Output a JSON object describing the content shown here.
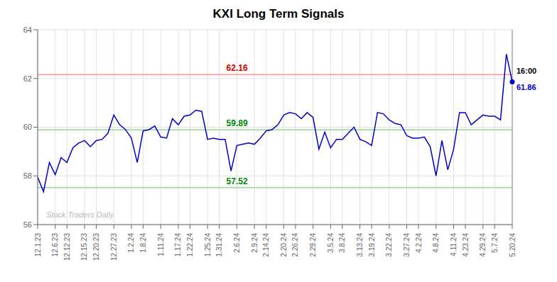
{
  "chart_data": {
    "type": "line",
    "title": "KXI Long Term Signals",
    "categories": [
      "12.1.23",
      null,
      null,
      "12.6.23",
      null,
      "12.12.23",
      null,
      null,
      "12.15.23",
      null,
      "12.20.23",
      null,
      null,
      "12.27.23",
      null,
      null,
      "1.2.24",
      null,
      "1.8.24",
      null,
      null,
      "1.11.24",
      null,
      null,
      "1.17.24",
      null,
      "1.22.24",
      null,
      null,
      "1.25.24",
      null,
      "1.31.24",
      null,
      null,
      "2.6.24",
      null,
      null,
      "2.9.24",
      null,
      "2.14.24",
      null,
      null,
      "2.20.24",
      null,
      "2.26.24",
      null,
      null,
      "2.29.24",
      null,
      null,
      "3.5.24",
      null,
      "3.8.24",
      null,
      null,
      "3.13.24",
      null,
      "3.19.24",
      null,
      null,
      "3.22.24",
      null,
      null,
      "3.27.24",
      null,
      "4.2.24",
      null,
      null,
      "4.8.24",
      null,
      null,
      "4.11.24",
      null,
      "4.23.24",
      null,
      null,
      "4.29.24",
      null,
      "5.7.24",
      null,
      null,
      "5.20.24"
    ],
    "values": [
      57.95,
      57.35,
      58.55,
      58.05,
      58.75,
      58.55,
      59.15,
      59.35,
      59.45,
      59.2,
      59.45,
      59.5,
      59.75,
      60.5,
      60.1,
      59.9,
      59.55,
      58.55,
      59.85,
      59.9,
      60.05,
      59.6,
      59.55,
      60.35,
      60.1,
      60.45,
      60.5,
      60.7,
      60.65,
      59.5,
      59.55,
      59.5,
      59.5,
      58.2,
      59.25,
      59.3,
      59.35,
      59.3,
      59.55,
      59.85,
      59.9,
      60.1,
      60.5,
      60.6,
      60.55,
      60.35,
      60.6,
      60.4,
      59.1,
      59.8,
      59.15,
      59.5,
      59.5,
      59.75,
      60.0,
      59.5,
      59.4,
      59.25,
      60.6,
      60.55,
      60.3,
      60.15,
      60.1,
      59.65,
      59.55,
      59.55,
      59.6,
      59.2,
      58.0,
      59.45,
      58.25,
      59.1,
      60.6,
      60.6,
      60.1,
      60.3,
      60.5,
      60.45,
      60.45,
      60.3,
      63.0,
      61.86
    ],
    "color": "#0000cc",
    "ylim": [
      56,
      64
    ],
    "yticks": [
      56,
      58,
      60,
      62,
      64
    ],
    "grid": true,
    "reference_lines": [
      {
        "y": 62.16,
        "color": "#ffaaaa",
        "label": "62.16",
        "label_color": "#cc0000"
      },
      {
        "y": 59.89,
        "color": "#aaddaa",
        "label": "59.89",
        "label_color": "#008800"
      },
      {
        "y": 57.52,
        "color": "#aaddaa",
        "label": "57.52",
        "label_color": "#008800"
      }
    ],
    "annotations": [
      {
        "text": "16:00",
        "color": "#000000"
      },
      {
        "text": "61.86",
        "color": "#0000cc"
      }
    ],
    "watermark": "Stock Traders Daily"
  }
}
